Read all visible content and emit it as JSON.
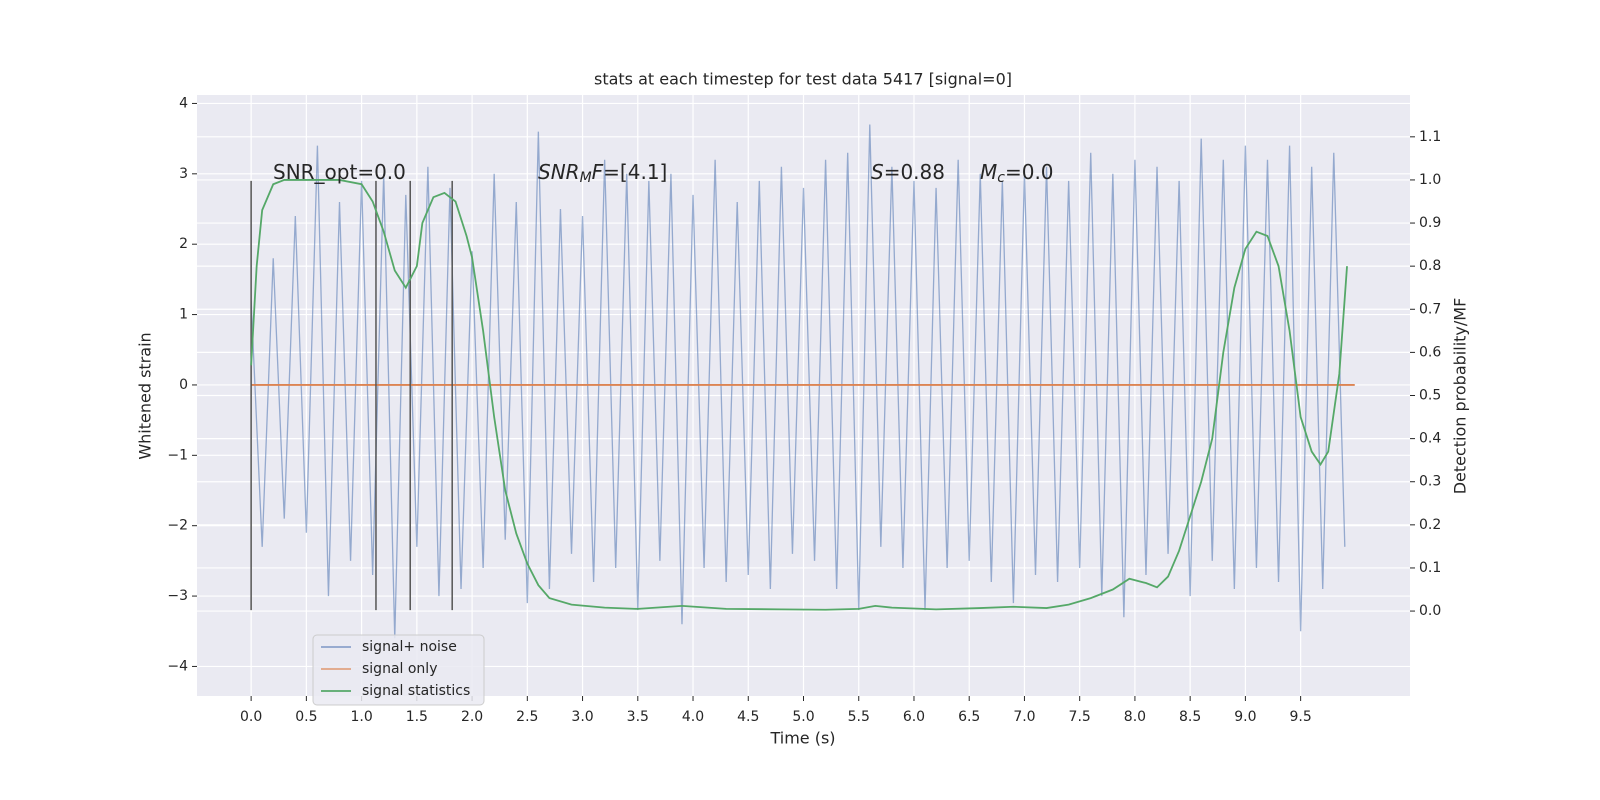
{
  "chart_data": {
    "type": "line",
    "title": "stats at each timestep for test data 5417 [signal=0]",
    "xlabel": "Time (s)",
    "ylabel": "Whitened strain",
    "y2label": "Detection probability/MF",
    "xlim": [
      -0.49,
      10.49
    ],
    "ylim": [
      -4.42,
      4.12
    ],
    "y2lim": [
      -0.197,
      1.197
    ],
    "xticks": [
      {
        "value": 0,
        "label": "0.0"
      },
      {
        "value": 0.5,
        "label": "0.5"
      },
      {
        "value": 1,
        "label": "1.0"
      },
      {
        "value": 1.5,
        "label": "1.5"
      },
      {
        "value": 2,
        "label": "2.0"
      },
      {
        "value": 2.5,
        "label": "2.5"
      },
      {
        "value": 3,
        "label": "3.0"
      },
      {
        "value": 3.5,
        "label": "3.5"
      },
      {
        "value": 4,
        "label": "4.0"
      },
      {
        "value": 4.5,
        "label": "4.5"
      },
      {
        "value": 5,
        "label": "5.0"
      },
      {
        "value": 5.5,
        "label": "5.5"
      },
      {
        "value": 6,
        "label": "6.0"
      },
      {
        "value": 6.5,
        "label": "6.5"
      },
      {
        "value": 7,
        "label": "7.0"
      },
      {
        "value": 7.5,
        "label": "7.5"
      },
      {
        "value": 8,
        "label": "8.0"
      },
      {
        "value": 8.5,
        "label": "8.5"
      },
      {
        "value": 9,
        "label": "9.0"
      },
      {
        "value": 9.5,
        "label": "9.5"
      }
    ],
    "yticks": [
      {
        "value": -4,
        "label": "−4"
      },
      {
        "value": -3,
        "label": "−3"
      },
      {
        "value": -2,
        "label": "−2"
      },
      {
        "value": -1,
        "label": "−1"
      },
      0,
      1,
      2,
      3,
      4
    ],
    "y2ticks": [
      {
        "value": 0,
        "label": "0.0"
      },
      {
        "value": 0.1,
        "label": "0.1"
      },
      {
        "value": 0.2,
        "label": "0.2"
      },
      {
        "value": 0.3,
        "label": "0.3"
      },
      {
        "value": 0.4,
        "label": "0.4"
      },
      {
        "value": 0.5,
        "label": "0.5"
      },
      {
        "value": 0.6,
        "label": "0.6"
      },
      {
        "value": 0.7,
        "label": "0.7"
      },
      {
        "value": 0.8,
        "label": "0.8"
      },
      {
        "value": 0.9,
        "label": "0.9"
      },
      {
        "value": 1,
        "label": "1.0"
      },
      {
        "value": 1.1,
        "label": "1.1"
      }
    ],
    "grid": true,
    "legend": "lower left",
    "series": [
      {
        "name": "signal+ noise",
        "color": "#4c72b0",
        "x": [
          0.0,
          0.1,
          0.2,
          0.3,
          0.4,
          0.5,
          0.6,
          0.7,
          0.8,
          0.9,
          1.0,
          1.1,
          1.2,
          1.3,
          1.4,
          1.5,
          1.6,
          1.7,
          1.8,
          1.9,
          2.0,
          2.1,
          2.2,
          2.3,
          2.4,
          2.5,
          2.6,
          2.7,
          2.8,
          2.9,
          3.0,
          3.1,
          3.2,
          3.3,
          3.4,
          3.5,
          3.6,
          3.7,
          3.8,
          3.9,
          4.0,
          4.1,
          4.2,
          4.3,
          4.4,
          4.5,
          4.6,
          4.7,
          4.8,
          4.9,
          5.0,
          5.1,
          5.2,
          5.3,
          5.4,
          5.5,
          5.6,
          5.7,
          5.8,
          5.9,
          6.0,
          6.1,
          6.2,
          6.3,
          6.4,
          6.5,
          6.6,
          6.7,
          6.8,
          6.9,
          7.0,
          7.1,
          7.2,
          7.3,
          7.4,
          7.5,
          7.6,
          7.7,
          7.8,
          7.9,
          8.0,
          8.1,
          8.2,
          8.3,
          8.4,
          8.5,
          8.6,
          8.7,
          8.8,
          8.9,
          9.0,
          9.1,
          9.2,
          9.3,
          9.4,
          9.5,
          9.6,
          9.7,
          9.8,
          9.9
        ],
        "values": [
          1.2,
          -2.3,
          1.8,
          -1.9,
          2.4,
          -2.1,
          3.4,
          -3.0,
          2.6,
          -2.5,
          2.9,
          -2.7,
          3.0,
          -3.6,
          2.7,
          -2.3,
          3.1,
          -3.0,
          2.8,
          -2.9,
          1.9,
          -2.6,
          3.0,
          -2.2,
          2.6,
          -3.1,
          3.6,
          -2.9,
          2.5,
          -2.4,
          2.4,
          -2.8,
          3.2,
          -2.6,
          3.0,
          -3.2,
          2.9,
          -2.5,
          3.0,
          -3.4,
          2.7,
          -2.6,
          3.2,
          -2.8,
          2.6,
          -2.7,
          2.9,
          -2.9,
          3.1,
          -2.4,
          2.8,
          -2.5,
          3.2,
          -2.9,
          3.3,
          -3.2,
          3.7,
          -2.3,
          3.1,
          -2.6,
          2.9,
          -3.2,
          2.8,
          -2.6,
          3.2,
          -2.5,
          3.0,
          -2.8,
          2.9,
          -3.1,
          3.0,
          -2.7,
          3.1,
          -2.8,
          2.9,
          -2.6,
          3.3,
          -3.0,
          3.0,
          -3.3,
          3.2,
          -2.7,
          3.1,
          -2.4,
          2.9,
          -3.0,
          3.5,
          -2.5,
          3.2,
          -2.9,
          3.4,
          -2.6,
          3.2,
          -2.8,
          3.4,
          -3.5,
          3.1,
          -2.9,
          3.3,
          -2.3
        ]
      },
      {
        "name": "signal only",
        "color": "#dd8452",
        "x": [
          0.0,
          9.99
        ],
        "values": [
          0,
          0
        ]
      },
      {
        "name": "signal statistics",
        "color": "#55a868",
        "axis": "y2",
        "x": [
          0.0,
          0.05,
          0.1,
          0.2,
          0.3,
          0.5,
          0.8,
          1.0,
          1.1,
          1.2,
          1.3,
          1.4,
          1.5,
          1.55,
          1.65,
          1.75,
          1.85,
          1.95,
          2.0,
          2.1,
          2.2,
          2.3,
          2.4,
          2.5,
          2.6,
          2.7,
          2.9,
          3.2,
          3.5,
          3.9,
          4.3,
          4.8,
          5.2,
          5.5,
          5.65,
          5.8,
          6.2,
          6.6,
          6.9,
          7.2,
          7.4,
          7.6,
          7.8,
          7.95,
          8.1,
          8.2,
          8.3,
          8.4,
          8.5,
          8.6,
          8.7,
          8.8,
          8.9,
          9.0,
          9.1,
          9.2,
          9.3,
          9.4,
          9.5,
          9.6,
          9.68,
          9.75,
          9.85,
          9.92
        ],
        "values": [
          0.57,
          0.8,
          0.93,
          0.99,
          1.0,
          1.0,
          1.0,
          0.99,
          0.95,
          0.88,
          0.79,
          0.75,
          0.8,
          0.9,
          0.96,
          0.97,
          0.95,
          0.87,
          0.82,
          0.65,
          0.45,
          0.28,
          0.18,
          0.11,
          0.06,
          0.03,
          0.015,
          0.008,
          0.005,
          0.012,
          0.005,
          0.004,
          0.003,
          0.005,
          0.012,
          0.008,
          0.004,
          0.007,
          0.01,
          0.007,
          0.015,
          0.03,
          0.05,
          0.075,
          0.065,
          0.055,
          0.08,
          0.14,
          0.22,
          0.3,
          0.4,
          0.6,
          0.75,
          0.84,
          0.88,
          0.87,
          0.8,
          0.65,
          0.45,
          0.37,
          0.34,
          0.37,
          0.55,
          0.8
        ]
      }
    ],
    "vlines": {
      "color": "#555555",
      "x": [
        0.0,
        1.13,
        1.44,
        1.82
      ],
      "ymin": -3.2,
      "ymax": 2.9
    },
    "annotations": [
      {
        "parts": [
          {
            "text": "SNR_opt=0.0"
          }
        ]
      },
      {
        "parts": [
          {
            "text": "SNR",
            "italic": true
          },
          {
            "text": "M",
            "italic": true,
            "sub": true
          },
          {
            "text": "F",
            "italic": true
          },
          {
            "text": "=[4.1]"
          }
        ]
      },
      {
        "parts": [
          {
            "text": "S",
            "italic": true
          },
          {
            "text": "=0.88"
          }
        ]
      },
      {
        "parts": [
          {
            "text": "M",
            "italic": true
          },
          {
            "text": "c",
            "italic": true,
            "sub": true
          },
          {
            "text": "=0.0"
          }
        ]
      }
    ]
  }
}
